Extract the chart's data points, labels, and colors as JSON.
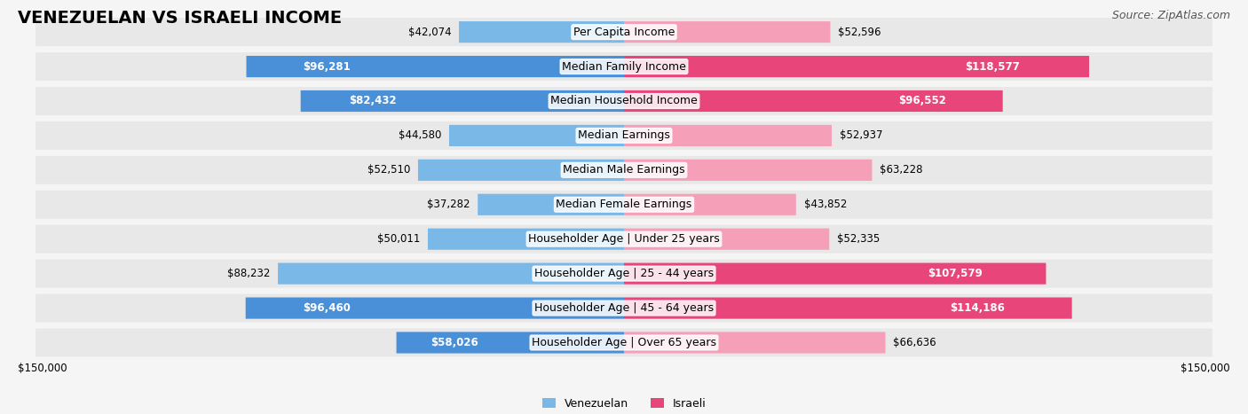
{
  "title": "VENEZUELAN VS ISRAELI INCOME",
  "source": "Source: ZipAtlas.com",
  "categories": [
    "Per Capita Income",
    "Median Family Income",
    "Median Household Income",
    "Median Earnings",
    "Median Male Earnings",
    "Median Female Earnings",
    "Householder Age | Under 25 years",
    "Householder Age | 25 - 44 years",
    "Householder Age | 45 - 64 years",
    "Householder Age | Over 65 years"
  ],
  "venezuelan_values": [
    42074,
    96281,
    82432,
    44580,
    52510,
    37282,
    50011,
    88232,
    96460,
    58026
  ],
  "israeli_values": [
    52596,
    118577,
    96552,
    52937,
    63228,
    43852,
    52335,
    107579,
    114186,
    66636
  ],
  "venezuelan_color_normal": "#7ab8e8",
  "venezuelan_color_bold": "#4a90d9",
  "israeli_color_normal": "#f5a0b8",
  "israeli_color_bold": "#e8457a",
  "venezuelan_bold": [
    1,
    2,
    8,
    9
  ],
  "israeli_bold": [
    1,
    2,
    7,
    8
  ],
  "max_value": 150000,
  "background_color": "#f5f5f5",
  "bar_background_color": "#e8e8e8",
  "title_fontsize": 14,
  "label_fontsize": 9,
  "value_fontsize": 8.5,
  "legend_fontsize": 9,
  "source_fontsize": 9
}
